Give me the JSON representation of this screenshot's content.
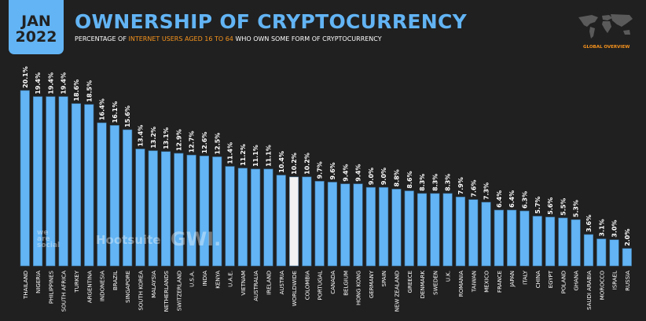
{
  "header": {
    "date_month": "JAN",
    "date_year": "2022",
    "title": "OWNERSHIP OF CRYPTOCURRENCY",
    "subtitle_pre": "PERCENTAGE OF ",
    "subtitle_highlight": "INTERNET USERS AGED 16 TO 64",
    "subtitle_post": " WHO OWN SOME FORM OF CRYPTOCURRENCY",
    "badge": "GLOBAL OVERVIEW"
  },
  "watermarks": {
    "we_are_social": "we are social",
    "hootsuite": "Hootsuite",
    "gwi": "GWI."
  },
  "colors": {
    "background": "#202020",
    "bar": "#62b4f4",
    "highlight_bar": "#f2f2f2",
    "accent": "#f7941d"
  },
  "chart_data": {
    "type": "bar",
    "title": "OWNERSHIP OF CRYPTOCURRENCY",
    "xlabel": "",
    "ylabel": "",
    "ylim": [
      0,
      20.1
    ],
    "grid": false,
    "value_suffix": "%",
    "highlight_category": "WORLDWIDE",
    "categories": [
      "THAILAND",
      "NIGERIA",
      "PHILIPPINES",
      "SOUTH AFRICA",
      "TURKEY",
      "ARGENTINA",
      "INDONESIA",
      "BRAZIL",
      "SINGAPORE",
      "SOUTH KOREA",
      "MALAYSIA",
      "NETHERLANDS",
      "SWITZERLAND",
      "U.S.A.",
      "INDIA",
      "KENYA",
      "U.A.E.",
      "VIETNAM",
      "AUSTRALIA",
      "IRELAND",
      "AUSTRIA",
      "WORLDWIDE",
      "COLOMBIA",
      "PORTUGAL",
      "CANADA",
      "BELGIUM",
      "HONG KONG",
      "GERMANY",
      "SPAIN",
      "NEW ZEALAND",
      "GREECE",
      "DENMARK",
      "SWEDEN",
      "U.K.",
      "ROMANIA",
      "TAIWAN",
      "MEXICO",
      "FRANCE",
      "JAPAN",
      "ITALY",
      "CHINA",
      "EGYPT",
      "POLAND",
      "GHANA",
      "SAUDI ARABIA",
      "MOROCCO",
      "ISRAEL",
      "RUSSIA"
    ],
    "values": [
      20.1,
      19.4,
      19.4,
      19.4,
      18.6,
      18.5,
      16.4,
      16.1,
      15.6,
      13.4,
      13.2,
      13.1,
      12.9,
      12.7,
      12.6,
      12.5,
      11.4,
      11.2,
      11.1,
      11.1,
      10.4,
      10.2,
      10.2,
      9.7,
      9.6,
      9.4,
      9.4,
      9.0,
      9.0,
      8.8,
      8.6,
      8.3,
      8.3,
      8.3,
      7.9,
      7.6,
      7.3,
      6.4,
      6.4,
      6.3,
      5.7,
      5.6,
      5.5,
      5.3,
      3.6,
      3.1,
      3.0,
      2.0
    ]
  }
}
